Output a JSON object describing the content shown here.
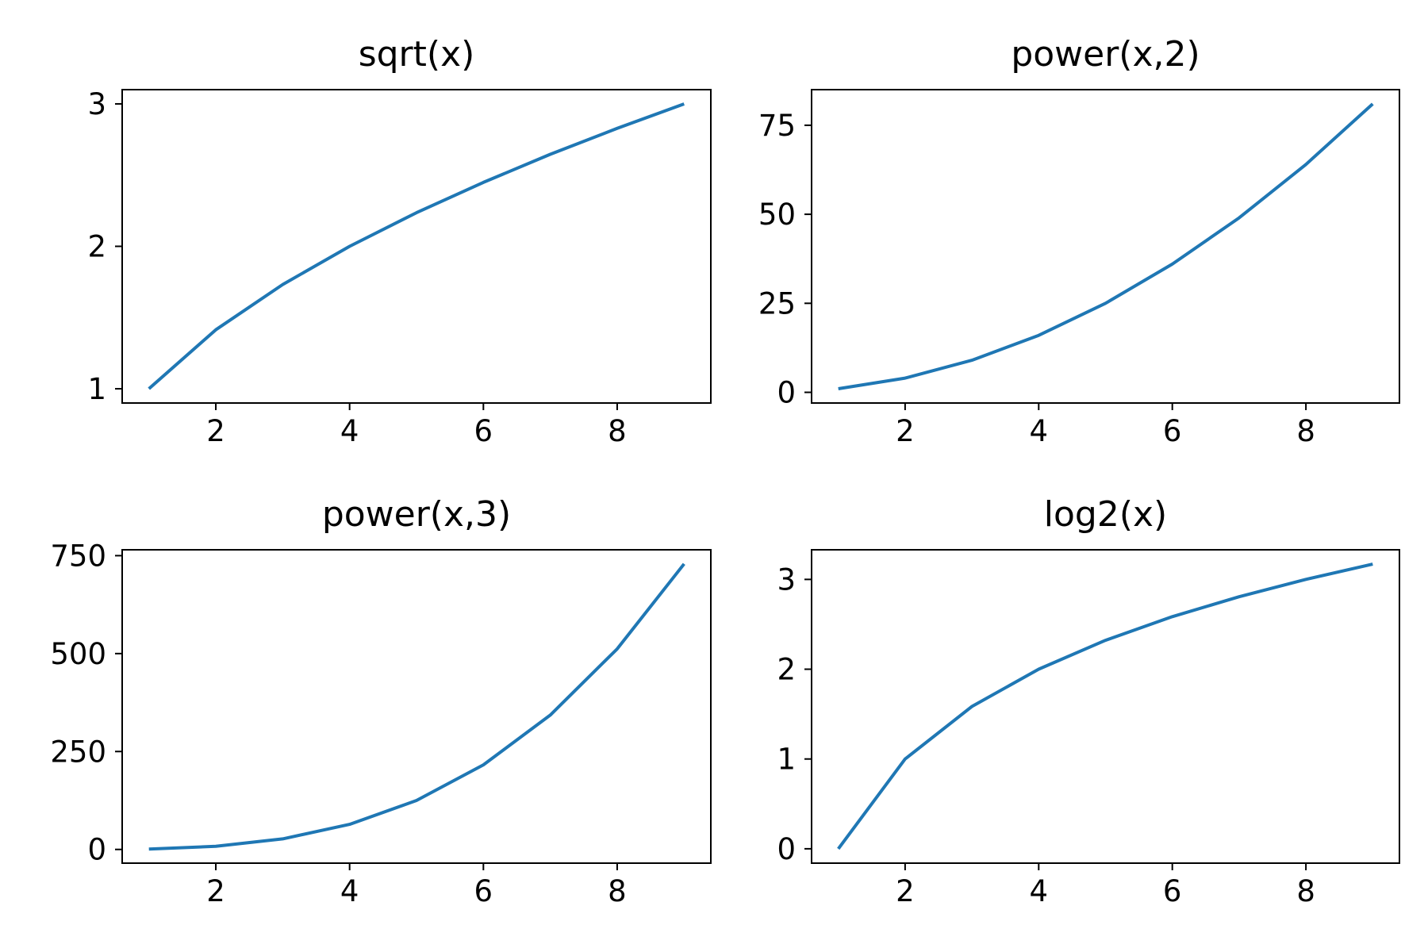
{
  "chart_data": [
    {
      "type": "line",
      "title": "sqrt(x)",
      "xlabel": "",
      "ylabel": "",
      "x": [
        1,
        2,
        3,
        4,
        5,
        6,
        7,
        8,
        9
      ],
      "series": [
        {
          "values": [
            1.0,
            1.414,
            1.732,
            2.0,
            2.236,
            2.449,
            2.646,
            2.828,
            3.0
          ],
          "color": "#1f77b4"
        }
      ],
      "xlim": [
        0.6,
        9.4
      ],
      "ylim": [
        0.9,
        3.1
      ],
      "xticks": [
        2,
        4,
        6,
        8
      ],
      "xtick_labels": [
        "2",
        "4",
        "6",
        "8"
      ],
      "yticks": [
        1,
        2,
        3
      ],
      "ytick_labels": [
        "1",
        "2",
        "3"
      ],
      "grid": false,
      "legend": "none"
    },
    {
      "type": "line",
      "title": "power(x,2)",
      "xlabel": "",
      "ylabel": "",
      "x": [
        1,
        2,
        3,
        4,
        5,
        6,
        7,
        8,
        9
      ],
      "series": [
        {
          "values": [
            1,
            4,
            9,
            16,
            25,
            36,
            49,
            64,
            81
          ],
          "color": "#1f77b4"
        }
      ],
      "xlim": [
        0.6,
        9.4
      ],
      "ylim": [
        -3,
        85
      ],
      "xticks": [
        2,
        4,
        6,
        8
      ],
      "xtick_labels": [
        "2",
        "4",
        "6",
        "8"
      ],
      "yticks": [
        0,
        25,
        50,
        75
      ],
      "ytick_labels": [
        "0",
        "25",
        "50",
        "75"
      ],
      "grid": false,
      "legend": "none"
    },
    {
      "type": "line",
      "title": "power(x,3)",
      "xlabel": "",
      "ylabel": "",
      "x": [
        1,
        2,
        3,
        4,
        5,
        6,
        7,
        8,
        9
      ],
      "series": [
        {
          "values": [
            1,
            8,
            27,
            64,
            125,
            216,
            343,
            512,
            729
          ],
          "color": "#1f77b4"
        }
      ],
      "xlim": [
        0.6,
        9.4
      ],
      "ylim": [
        -35,
        765
      ],
      "xticks": [
        2,
        4,
        6,
        8
      ],
      "xtick_labels": [
        "2",
        "4",
        "6",
        "8"
      ],
      "yticks": [
        0,
        250,
        500,
        750
      ],
      "ytick_labels": [
        "0",
        "250",
        "500",
        "750"
      ],
      "grid": false,
      "legend": "none"
    },
    {
      "type": "line",
      "title": "log2(x)",
      "xlabel": "",
      "ylabel": "",
      "x": [
        1,
        2,
        3,
        4,
        5,
        6,
        7,
        8,
        9
      ],
      "series": [
        {
          "values": [
            0.0,
            1.0,
            1.585,
            2.0,
            2.322,
            2.585,
            2.807,
            3.0,
            3.17
          ],
          "color": "#1f77b4"
        }
      ],
      "xlim": [
        0.6,
        9.4
      ],
      "ylim": [
        -0.16,
        3.33
      ],
      "xticks": [
        2,
        4,
        6,
        8
      ],
      "xtick_labels": [
        "2",
        "4",
        "6",
        "8"
      ],
      "yticks": [
        0,
        1,
        2,
        3
      ],
      "ytick_labels": [
        "0",
        "1",
        "2",
        "3"
      ],
      "grid": false,
      "legend": "none"
    }
  ]
}
